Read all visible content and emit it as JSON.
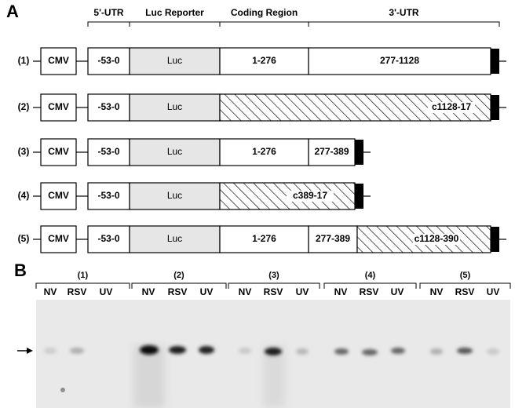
{
  "panel_a": {
    "label": "A",
    "headers": [
      "5'-UTR",
      "Luc Reporter",
      "Coding Region",
      "3'-UTR"
    ],
    "constructs": [
      {
        "label": "(1)",
        "promoter": "CMV",
        "utr5": "-53-0",
        "reporter": "Luc",
        "segments": [
          "1-276",
          "277-1128"
        ]
      },
      {
        "label": "(2)",
        "promoter": "CMV",
        "utr5": "-53-0",
        "reporter": "Luc",
        "segments": [
          "c1128-17"
        ]
      },
      {
        "label": "(3)",
        "promoter": "CMV",
        "utr5": "-53-0",
        "reporter": "Luc",
        "segments": [
          "1-276",
          "277-389"
        ]
      },
      {
        "label": "(4)",
        "promoter": "CMV",
        "utr5": "-53-0",
        "reporter": "Luc",
        "segments": [
          "c389-17"
        ]
      },
      {
        "label": "(5)",
        "promoter": "CMV",
        "utr5": "-53-0",
        "reporter": "Luc",
        "segments": [
          "1-276",
          "277-389",
          "c1128-390"
        ]
      }
    ]
  },
  "panel_b": {
    "label": "B",
    "groups": [
      {
        "label": "(1)",
        "lanes": [
          "NV",
          "RSV",
          "UV"
        ]
      },
      {
        "label": "(2)",
        "lanes": [
          "NV",
          "RSV",
          "UV"
        ]
      },
      {
        "label": "(3)",
        "lanes": [
          "NV",
          "RSV",
          "UV"
        ]
      },
      {
        "label": "(4)",
        "lanes": [
          "NV",
          "RSV",
          "UV"
        ]
      },
      {
        "label": "(5)",
        "lanes": [
          "NV",
          "RSV",
          "UV"
        ]
      }
    ]
  }
}
